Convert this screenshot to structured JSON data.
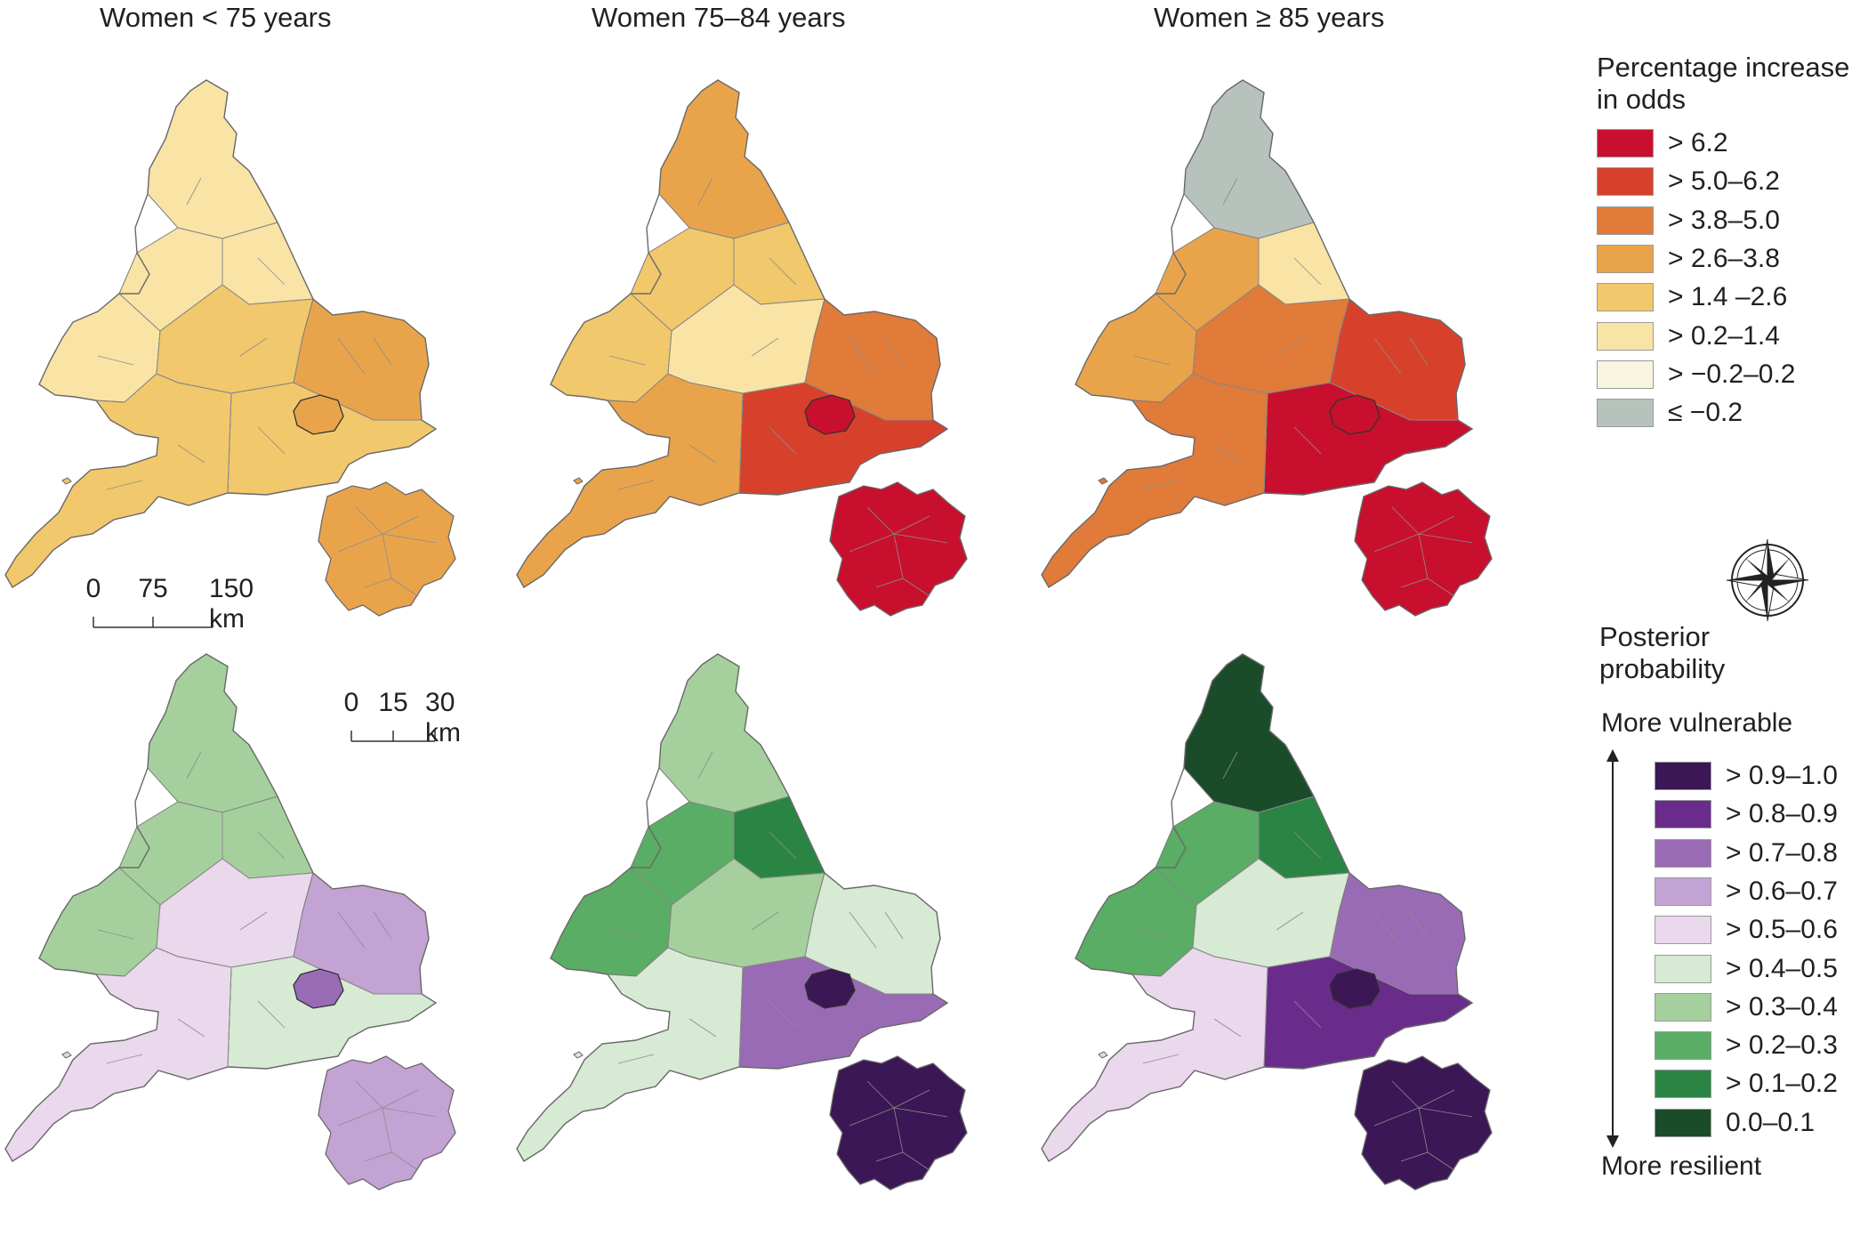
{
  "titles": [
    "Women < 75 years",
    "Women 75–84 years",
    "Women ≥ 85 years"
  ],
  "scale_bar_main": {
    "labels": [
      "0",
      "75",
      "150 km"
    ]
  },
  "scale_bar_inset": {
    "labels": [
      "0",
      "15",
      "30 km"
    ]
  },
  "legend_increase": {
    "title_line1": "Percentage  increase",
    "title_line2": "in odds",
    "items": [
      {
        "label": ">  6.2",
        "color": "#c8102e"
      },
      {
        "label": ">  5.0–6.2",
        "color": "#d7412b"
      },
      {
        "label": ">  3.8–5.0",
        "color": "#e07b3a"
      },
      {
        "label": ">  2.6–3.8",
        "color": "#e9a44b"
      },
      {
        "label": "> 1.4 –2.6",
        "color": "#f2c86c"
      },
      {
        "label": "> 0.2–1.4",
        "color": "#f9e4a6"
      },
      {
        "label": "> −0.2–0.2",
        "color": "#f8f5df"
      },
      {
        "label": "≤ −0.2",
        "color": "#b6c2bb"
      }
    ]
  },
  "compass": {
    "icon": "compass-rose-icon"
  },
  "legend_posterior": {
    "title_line1": "Posterior",
    "title_line2": "probability",
    "top_label": "More vulnerable",
    "bottom_label": "More resilient",
    "items": [
      {
        "label": "> 0.9–1.0",
        "color": "#3b1755"
      },
      {
        "label": "> 0.8–0.9",
        "color": "#6a2c8a"
      },
      {
        "label": "> 0.7–0.8",
        "color": "#9a6bb5"
      },
      {
        "label": "> 0.6–0.7",
        "color": "#c3a3d3"
      },
      {
        "label": "> 0.5–0.6",
        "color": "#ead8ec"
      },
      {
        "label": "> 0.4–0.5",
        "color": "#d7ead3"
      },
      {
        "label": "> 0.3–0.4",
        "color": "#a5d09d"
      },
      {
        "label": "> 0.2–0.3",
        "color": "#5aad64"
      },
      {
        "label": "> 0.1–0.2",
        "color": "#2a8544"
      },
      {
        "label": "0.0–0.1",
        "color": "#1a4c2a"
      }
    ]
  },
  "maps": [
    {
      "panel": "women-under-75-percent-increase",
      "zones": {
        "north": "#f9e4a6",
        "northeast": "#f9e4a6",
        "wales": "#f9e4a6",
        "midlands": "#f2c86c",
        "east": "#e9a44b",
        "southeast": "#f2c86c",
        "southwest": "#f2c86c",
        "london": "#e9a44b",
        "inset": "#e9a44b"
      }
    },
    {
      "panel": "women-75-84-percent-increase",
      "zones": {
        "north": "#e9a44b",
        "northeast": "#f2c86c",
        "wales": "#f2c86c",
        "midlands": "#f9e4a6",
        "east": "#e07b3a",
        "southeast": "#d7412b",
        "southwest": "#e9a44b",
        "london": "#c8102e",
        "inset": "#c8102e"
      }
    },
    {
      "panel": "women-85-plus-percent-increase",
      "zones": {
        "north": "#b6c2bb",
        "northeast": "#f9e4a6",
        "wales": "#e9a44b",
        "midlands": "#e07b3a",
        "east": "#d7412b",
        "southeast": "#c8102e",
        "southwest": "#e07b3a",
        "london": "#c8102e",
        "inset": "#c8102e"
      }
    },
    {
      "panel": "women-under-75-posterior-probability",
      "zones": {
        "north": "#a5d09d",
        "northeast": "#a5d09d",
        "wales": "#a5d09d",
        "midlands": "#ead8ec",
        "east": "#c3a3d3",
        "southeast": "#d7ead3",
        "southwest": "#ead8ec",
        "london": "#9a6bb5",
        "inset": "#c3a3d3"
      }
    },
    {
      "panel": "women-75-84-posterior-probability",
      "zones": {
        "north": "#a5d09d",
        "northeast": "#2a8544",
        "wales": "#5aad64",
        "midlands": "#a5d09d",
        "east": "#d7ead3",
        "southeast": "#9a6bb5",
        "southwest": "#d7ead3",
        "london": "#3b1755",
        "inset": "#3b1755"
      }
    },
    {
      "panel": "women-85-plus-posterior-probability",
      "zones": {
        "north": "#1a4c2a",
        "northeast": "#2a8544",
        "wales": "#5aad64",
        "midlands": "#d7ead3",
        "east": "#9a6bb5",
        "southeast": "#6a2c8a",
        "southwest": "#ead8ec",
        "london": "#3b1755",
        "inset": "#3b1755"
      }
    }
  ]
}
